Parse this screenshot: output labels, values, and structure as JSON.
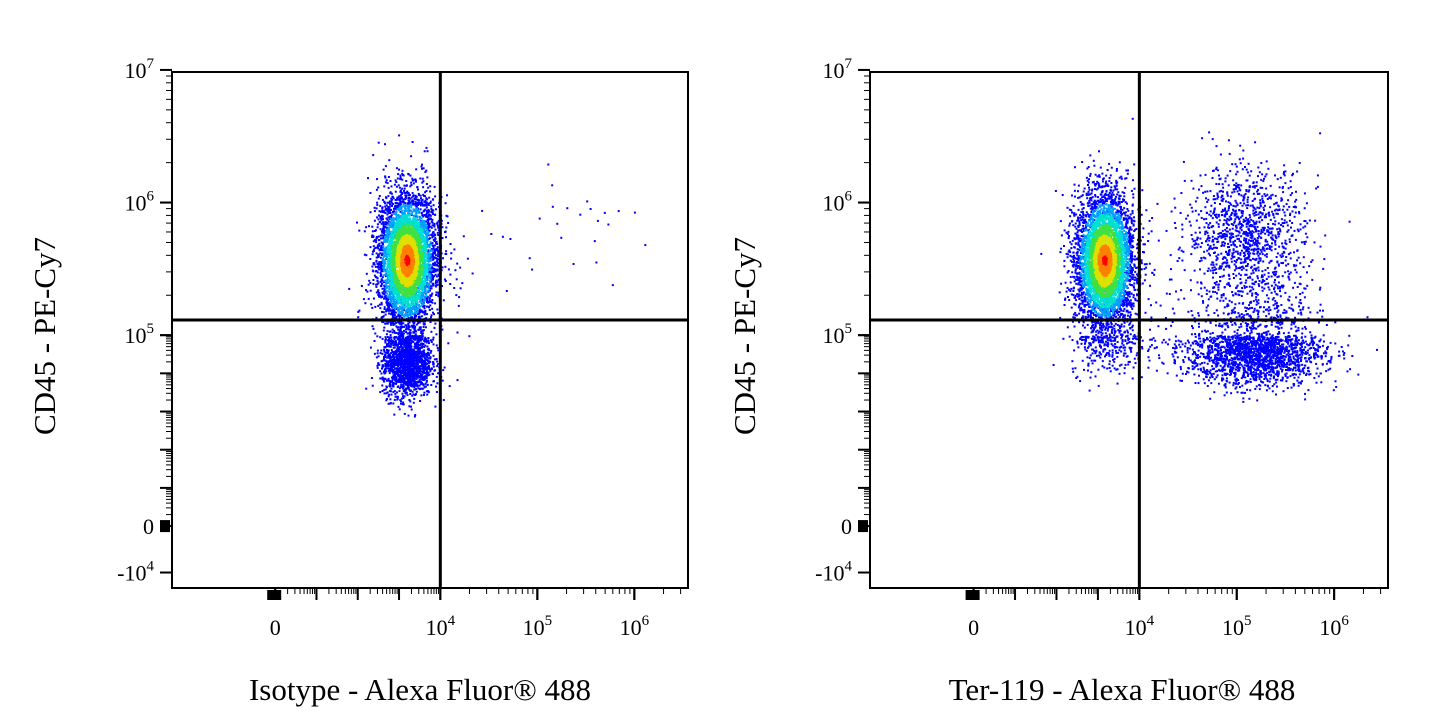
{
  "chart_data": [
    {
      "type": "scatter",
      "subtype": "flow-cytometry-density-dot-plot",
      "xlabel": "Isotype - Alexa Fluor® 488",
      "ylabel": "CD45 - PE-Cy7",
      "x_scale": "biexponential",
      "y_scale": "biexponential",
      "x_ticks": [
        {
          "label": "0",
          "value": 0
        },
        {
          "label": "10",
          "exp": "4",
          "value": 10000
        },
        {
          "label": "10",
          "exp": "5",
          "value": 100000
        },
        {
          "label": "10",
          "exp": "6",
          "value": 1000000
        }
      ],
      "y_ticks": [
        {
          "label": "-10",
          "exp": "4",
          "value": -10000
        },
        {
          "label": "0",
          "value": 0
        },
        {
          "label": "10",
          "exp": "5",
          "value": 100000
        },
        {
          "label": "10",
          "exp": "6",
          "value": 1000000
        },
        {
          "label": "10",
          "exp": "7",
          "value": 10000000
        }
      ],
      "quadrant_gate": {
        "x": 10000,
        "y": 130000
      },
      "grid": false,
      "legend": "none",
      "colormap": [
        "#0000ff",
        "#00a0ff",
        "#00e0d0",
        "#40e040",
        "#e0e000",
        "#ff8000",
        "#ff0000"
      ],
      "populations": [
        {
          "center_x": 1500,
          "center_y": 370000,
          "spread_x_decades": 0.35,
          "spread_y_decades": 0.25,
          "relative_count": 5200,
          "density": "high"
        },
        {
          "center_x": 1500,
          "center_y": 20000,
          "spread_x_decades": 0.3,
          "spread_y_decades": 0.45,
          "relative_count": 1600,
          "density": "low"
        },
        {
          "center_x": 200000,
          "center_y": 600000,
          "spread_x_decades": 0.5,
          "spread_y_decades": 0.2,
          "relative_count": 25,
          "density": "sparse"
        }
      ]
    },
    {
      "type": "scatter",
      "subtype": "flow-cytometry-density-dot-plot",
      "xlabel": "Ter-119 - Alexa Fluor® 488",
      "ylabel": "CD45 - PE-Cy7",
      "x_scale": "biexponential",
      "y_scale": "biexponential",
      "x_ticks": [
        {
          "label": "0",
          "value": 0
        },
        {
          "label": "10",
          "exp": "4",
          "value": 10000
        },
        {
          "label": "10",
          "exp": "5",
          "value": 100000
        },
        {
          "label": "10",
          "exp": "6",
          "value": 1000000
        }
      ],
      "y_ticks": [
        {
          "label": "-10",
          "exp": "4",
          "value": -10000
        },
        {
          "label": "0",
          "value": 0
        },
        {
          "label": "10",
          "exp": "5",
          "value": 100000
        },
        {
          "label": "10",
          "exp": "6",
          "value": 1000000
        },
        {
          "label": "10",
          "exp": "7",
          "value": 10000000
        }
      ],
      "quadrant_gate": {
        "x": 10000,
        "y": 130000
      },
      "grid": false,
      "legend": "none",
      "colormap": [
        "#0000ff",
        "#00a0ff",
        "#00e0d0",
        "#40e040",
        "#e0e000",
        "#ff8000",
        "#ff0000"
      ],
      "populations": [
        {
          "center_x": 1400,
          "center_y": 370000,
          "spread_x_decades": 0.35,
          "spread_y_decades": 0.25,
          "relative_count": 4800,
          "density": "high"
        },
        {
          "center_x": 120000,
          "center_y": 600000,
          "spread_x_decades": 0.3,
          "spread_y_decades": 0.25,
          "relative_count": 1100,
          "density": "low"
        },
        {
          "center_x": 150000,
          "center_y": 40000,
          "spread_x_decades": 0.35,
          "spread_y_decades": 0.45,
          "relative_count": 2200,
          "density": "low"
        },
        {
          "center_x": 2000,
          "center_y": 60000,
          "spread_x_decades": 0.5,
          "spread_y_decades": 0.4,
          "relative_count": 300,
          "density": "sparse"
        }
      ]
    }
  ]
}
